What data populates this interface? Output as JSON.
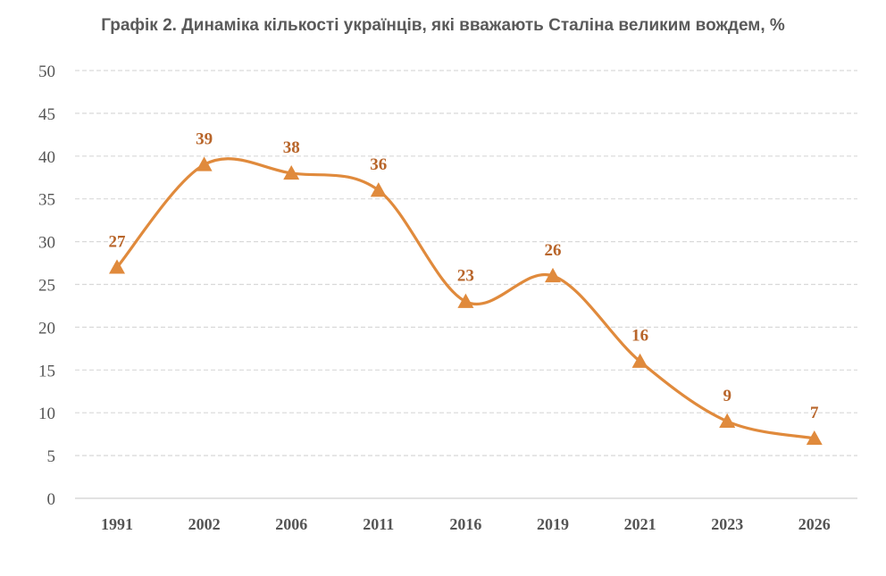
{
  "chart_data": {
    "type": "line",
    "title": "Графік 2. Динаміка кількості українців, які вважають Сталіна великим вождем, %",
    "xlabel": "",
    "ylabel": "",
    "categories": [
      "1991",
      "2002",
      "2006",
      "2011",
      "2016",
      "2019",
      "2021",
      "2023",
      "2026"
    ],
    "series": [
      {
        "values": [
          27,
          39,
          38,
          36,
          23,
          26,
          16,
          9,
          7
        ]
      }
    ],
    "ylim": [
      0,
      50
    ],
    "yticks": [
      0,
      5,
      10,
      15,
      20,
      25,
      30,
      35,
      40,
      45,
      50
    ],
    "grid": true,
    "legend": "none",
    "marker": "triangle",
    "color": "#e08a3c",
    "label_color": "#b8652a"
  }
}
